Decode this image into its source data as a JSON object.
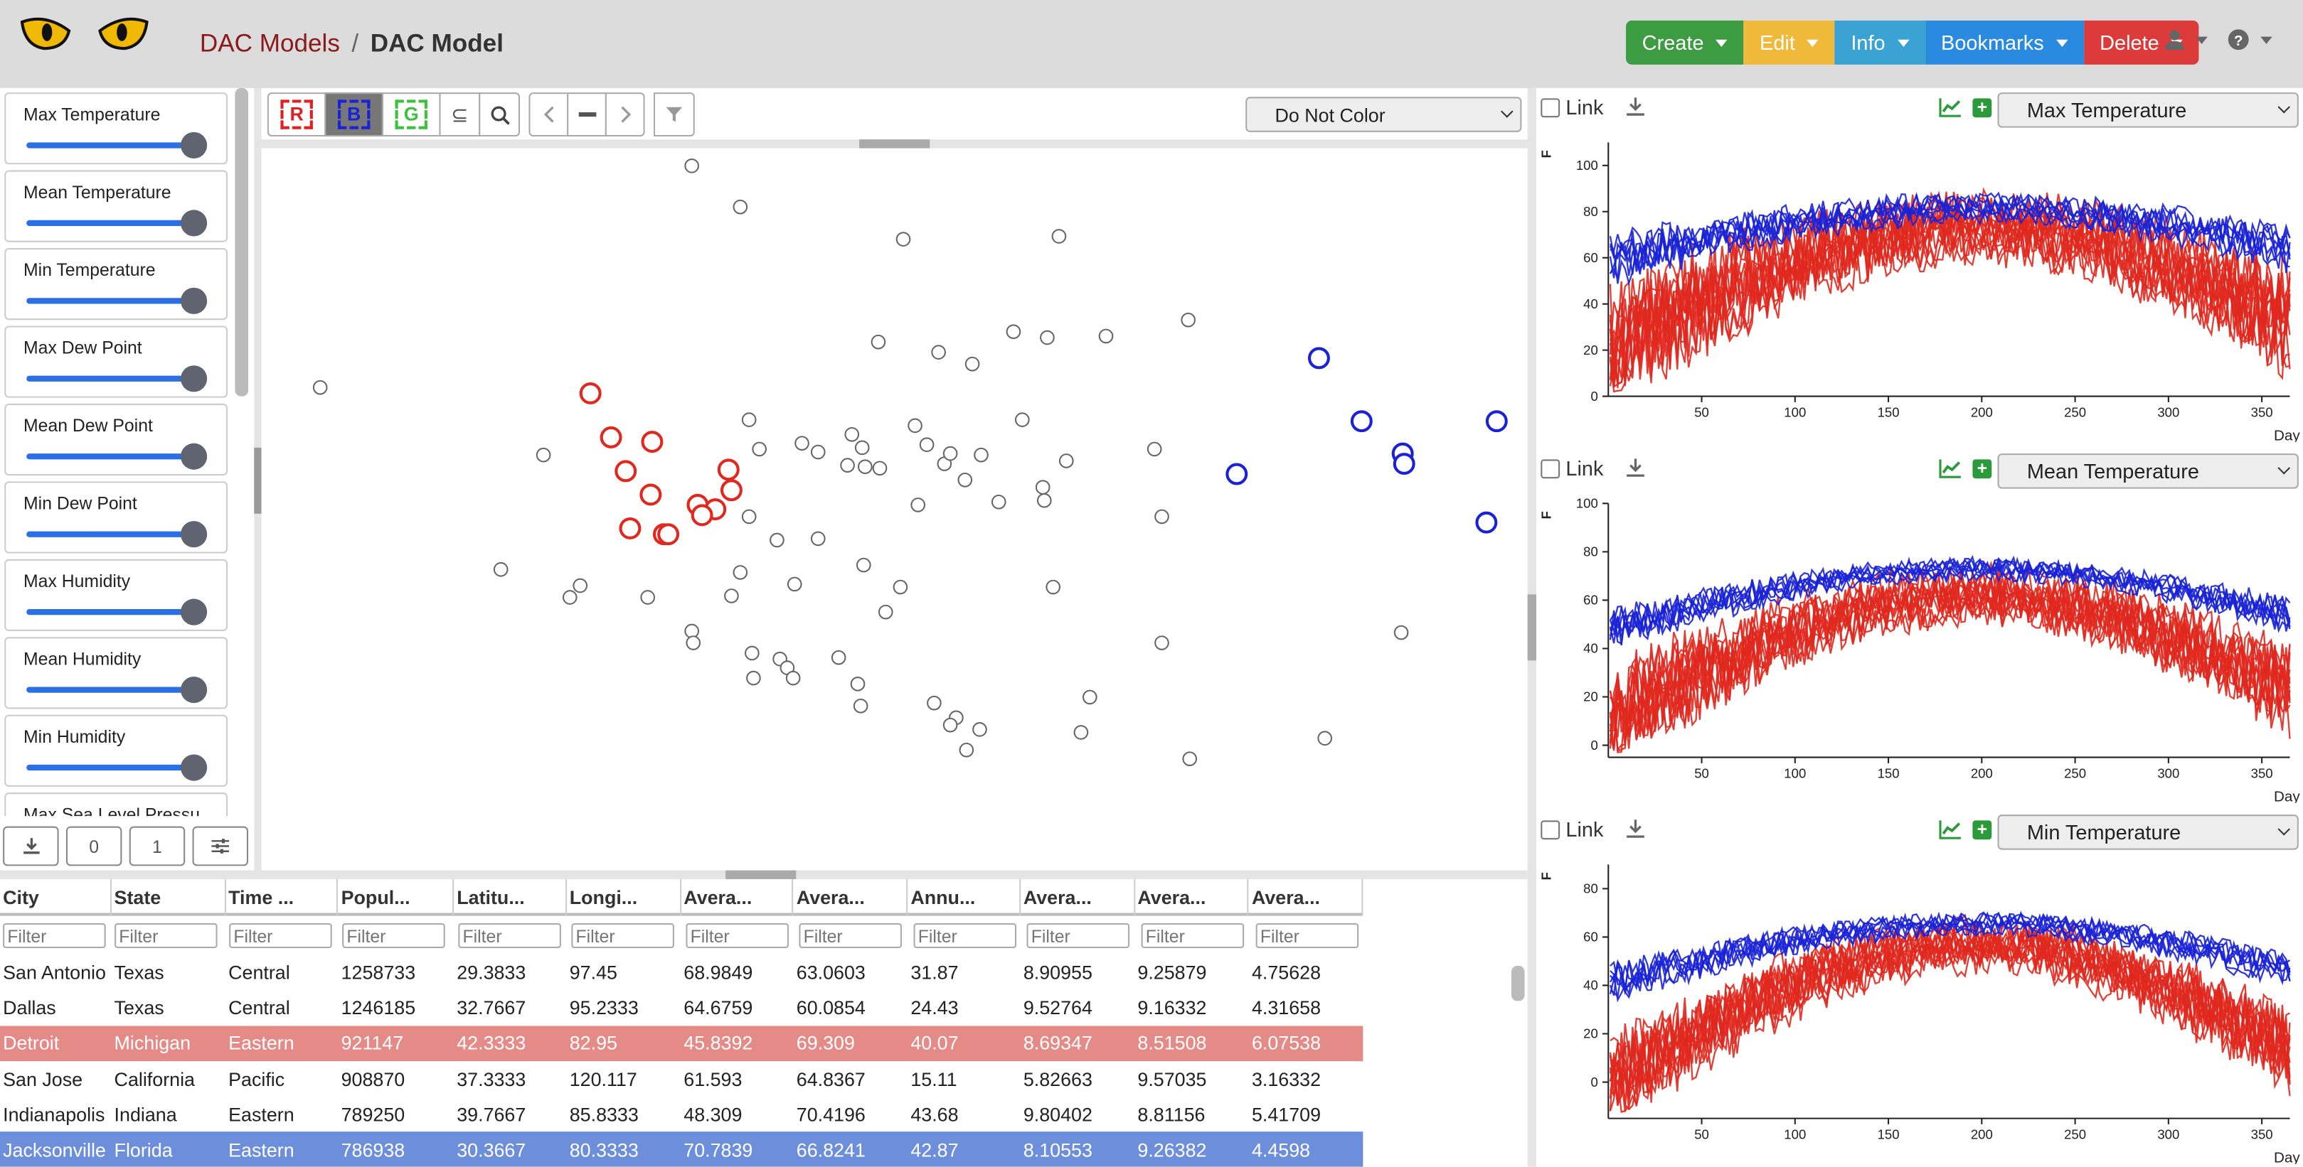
{
  "header": {
    "breadcrumb_link": "DAC Models",
    "breadcrumb_sep": "/",
    "breadcrumb_current": "DAC Model",
    "menus": [
      {
        "label": "Create",
        "color": "#3d9b41"
      },
      {
        "label": "Edit",
        "color": "#f1b93a"
      },
      {
        "label": "Info",
        "color": "#3aa3d4"
      },
      {
        "label": "Bookmarks",
        "color": "#2a8ae0"
      },
      {
        "label": "Delete",
        "color": "#dd3b3b"
      }
    ],
    "icons": [
      "cat-eye-logo-icon",
      "user-icon",
      "help-icon"
    ]
  },
  "variables": [
    {
      "label": "Max Temperature"
    },
    {
      "label": "Mean Temperature"
    },
    {
      "label": "Min Temperature"
    },
    {
      "label": "Max Dew Point"
    },
    {
      "label": "Mean Dew Point"
    },
    {
      "label": "Min Dew Point"
    },
    {
      "label": "Max Humidity"
    },
    {
      "label": "Mean Humidity"
    },
    {
      "label": "Min Humidity"
    },
    {
      "label": "Max Sea Level Pressu"
    }
  ],
  "left_controls": {
    "count_a": "0",
    "count_b": "1"
  },
  "toolbar": {
    "r_label": "R",
    "b_label": "B",
    "g_label": "G",
    "subset_label": "⊆",
    "color_select": "Do Not Color"
  },
  "scatter": {
    "colors": {
      "red": "#e0281e",
      "blue": "#1a22d6",
      "gray": "#666666"
    },
    "points_gray": [
      [
        471,
        113
      ],
      [
        504,
        141
      ],
      [
        615,
        163
      ],
      [
        721,
        161
      ],
      [
        218,
        264
      ],
      [
        598,
        233
      ],
      [
        639,
        240
      ],
      [
        662,
        248
      ],
      [
        690,
        226
      ],
      [
        713,
        230
      ],
      [
        753,
        229
      ],
      [
        809,
        218
      ],
      [
        370,
        310
      ],
      [
        510,
        286
      ],
      [
        517,
        306
      ],
      [
        546,
        302
      ],
      [
        557,
        308
      ],
      [
        580,
        296
      ],
      [
        587,
        305
      ],
      [
        577,
        317
      ],
      [
        589,
        318
      ],
      [
        599,
        319
      ],
      [
        623,
        290
      ],
      [
        631,
        303
      ],
      [
        643,
        316
      ],
      [
        647,
        309
      ],
      [
        657,
        327
      ],
      [
        668,
        310
      ],
      [
        696,
        286
      ],
      [
        726,
        314
      ],
      [
        710,
        332
      ],
      [
        711,
        341
      ],
      [
        680,
        342
      ],
      [
        625,
        344
      ],
      [
        786,
        306
      ],
      [
        791,
        352
      ],
      [
        510,
        352
      ],
      [
        341,
        388
      ],
      [
        395,
        399
      ],
      [
        388,
        407
      ],
      [
        441,
        407
      ],
      [
        504,
        390
      ],
      [
        498,
        406
      ],
      [
        529,
        368
      ],
      [
        557,
        367
      ],
      [
        541,
        398
      ],
      [
        588,
        385
      ],
      [
        613,
        400
      ],
      [
        603,
        417
      ],
      [
        471,
        430
      ],
      [
        472,
        438
      ],
      [
        512,
        445
      ],
      [
        513,
        462
      ],
      [
        531,
        449
      ],
      [
        536,
        455
      ],
      [
        540,
        462
      ],
      [
        571,
        448
      ],
      [
        584,
        466
      ],
      [
        586,
        481
      ],
      [
        636,
        479
      ],
      [
        651,
        489
      ],
      [
        647,
        494
      ],
      [
        667,
        497
      ],
      [
        658,
        511
      ],
      [
        717,
        400
      ],
      [
        742,
        475
      ],
      [
        736,
        499
      ],
      [
        791,
        438
      ],
      [
        954,
        431
      ],
      [
        902,
        503
      ],
      [
        810,
        517
      ]
    ],
    "points_red": [
      [
        402,
        268
      ],
      [
        416,
        298
      ],
      [
        444,
        301
      ],
      [
        426,
        321
      ],
      [
        443,
        337
      ],
      [
        496,
        320
      ],
      [
        498,
        334
      ],
      [
        475,
        344
      ],
      [
        487,
        347
      ],
      [
        478,
        351
      ],
      [
        429,
        360
      ],
      [
        452,
        364
      ],
      [
        455,
        364
      ]
    ],
    "points_blue": [
      [
        898,
        244
      ],
      [
        927,
        287
      ],
      [
        1019,
        287
      ],
      [
        955,
        309
      ],
      [
        956,
        316
      ],
      [
        842,
        323
      ],
      [
        1012,
        356
      ]
    ]
  },
  "table": {
    "columns": [
      "City",
      "State",
      "Time ...",
      "Popul...",
      "Latitu...",
      "Longi...",
      "Avera...",
      "Avera...",
      "Annu...",
      "Avera...",
      "Avera...",
      "Avera..."
    ],
    "filter_placeholder": "Filter",
    "rows": [
      {
        "cells": [
          "San Antonio",
          "Texas",
          "Central",
          "1258733",
          "29.3833",
          "97.45",
          "68.9849",
          "63.0603",
          "31.87",
          "8.90955",
          "9.25879",
          "4.75628"
        ],
        "highlight": "none"
      },
      {
        "cells": [
          "Dallas",
          "Texas",
          "Central",
          "1246185",
          "32.7667",
          "95.2333",
          "64.6759",
          "60.0854",
          "24.43",
          "9.52764",
          "9.16332",
          "4.31658"
        ],
        "highlight": "none"
      },
      {
        "cells": [
          "Detroit",
          "Michigan",
          "Eastern",
          "921147",
          "42.3333",
          "82.95",
          "45.8392",
          "69.309",
          "40.07",
          "8.69347",
          "8.51508",
          "6.07538"
        ],
        "highlight": "red"
      },
      {
        "cells": [
          "San Jose",
          "California",
          "Pacific",
          "908870",
          "37.3333",
          "120.117",
          "61.593",
          "64.8367",
          "15.11",
          "5.82663",
          "9.57035",
          "3.16332"
        ],
        "highlight": "none"
      },
      {
        "cells": [
          "Indianapolis",
          "Indiana",
          "Eastern",
          "789250",
          "39.7667",
          "85.8333",
          "48.309",
          "70.4196",
          "43.68",
          "9.80402",
          "8.81156",
          "5.41709"
        ],
        "highlight": "none"
      },
      {
        "cells": [
          "Jacksonville",
          "Florida",
          "Eastern",
          "786938",
          "30.3667",
          "80.3333",
          "70.7839",
          "66.8241",
          "42.87",
          "8.10553",
          "9.26382",
          "4.4598"
        ],
        "highlight": "blue"
      }
    ],
    "highlight_colors": {
      "red": "#e48a87",
      "blue": "#6d8fdb"
    }
  },
  "plots": [
    {
      "link_label": "Link",
      "variable": "Max Temperature",
      "y_unit": "F",
      "x_label": "Day",
      "y_ticks": [
        0,
        20,
        40,
        60,
        80,
        100
      ],
      "y_range": [
        0,
        110
      ],
      "x_ticks": [
        50,
        100,
        150,
        200,
        250,
        300,
        350
      ],
      "x_range": [
        0,
        365
      ],
      "blue_mean": {
        "base": 72,
        "amp": 20,
        "noise": 9
      },
      "red_mean": {
        "base": 50,
        "amp": 45,
        "noise": 22
      }
    },
    {
      "link_label": "Link",
      "variable": "Mean Temperature",
      "y_unit": "F",
      "x_label": "Day",
      "y_ticks": [
        0,
        20,
        40,
        60,
        80,
        100
      ],
      "y_range": [
        -5,
        100
      ],
      "x_ticks": [
        50,
        100,
        150,
        200,
        250,
        300,
        350
      ],
      "x_range": [
        0,
        365
      ],
      "blue_mean": {
        "base": 62,
        "amp": 22,
        "noise": 7
      },
      "red_mean": {
        "base": 40,
        "amp": 44,
        "noise": 18
      }
    },
    {
      "link_label": "Link",
      "variable": "Min Temperature",
      "y_unit": "F",
      "x_label": "Day",
      "y_ticks": [
        0,
        20,
        40,
        60,
        80
      ],
      "y_range": [
        -15,
        90
      ],
      "x_ticks": [
        50,
        100,
        150,
        200,
        250,
        300,
        350
      ],
      "x_range": [
        0,
        365
      ],
      "blue_mean": {
        "base": 55,
        "amp": 22,
        "noise": 7
      },
      "red_mean": {
        "base": 30,
        "amp": 50,
        "noise": 17
      }
    }
  ]
}
